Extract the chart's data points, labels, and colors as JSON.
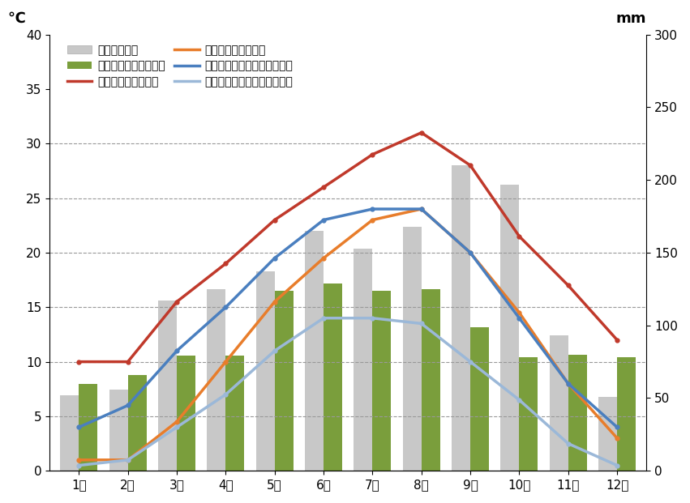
{
  "months": [
    "1月",
    "2月",
    "3月",
    "4月",
    "5月",
    "6月",
    "7月",
    "8月",
    "9月",
    "10月",
    "11月",
    "12月"
  ],
  "tokyo_precip": [
    52,
    56,
    117,
    125,
    137,
    165,
    153,
    168,
    210,
    197,
    93,
    51
  ],
  "zurich_precip": [
    60,
    66,
    79,
    79,
    124,
    129,
    124,
    125,
    99,
    78,
    80,
    78
  ],
  "tokyo_max_temp": [
    10,
    10,
    15.5,
    19,
    23,
    26,
    29,
    31,
    28,
    21.5,
    17,
    12
  ],
  "tokyo_min_temp": [
    1,
    1,
    4.5,
    10,
    15.5,
    19.5,
    23,
    24,
    20,
    14.5,
    8,
    3
  ],
  "zurich_max_temp": [
    4,
    6,
    11,
    15,
    19.5,
    23,
    24,
    24,
    20,
    14,
    8,
    4
  ],
  "zurich_min_temp": [
    0.5,
    1,
    4,
    7,
    11,
    14,
    14,
    13.5,
    10,
    6.5,
    2.5,
    0.5
  ],
  "tokyo_precip_color": "#c8c8c8",
  "zurich_precip_color": "#7a9e3c",
  "tokyo_max_color": "#c0392b",
  "tokyo_min_color": "#e87d2b",
  "zurich_max_color": "#4a7fbf",
  "zurich_min_color": "#9bb8d8",
  "left_ylabel": "℃",
  "right_ylabel": "mm",
  "ylim_left": [
    0,
    40
  ],
  "ylim_right": [
    0,
    300
  ],
  "yticks_left": [
    0,
    5,
    10,
    15,
    20,
    25,
    30,
    35,
    40
  ],
  "yticks_right": [
    0,
    50,
    100,
    150,
    200,
    250,
    300
  ],
  "bg_color": "#ffffff",
  "legend_labels": [
    "東京の降水量",
    "チューリッヒの降水量",
    "東京の平均最高気温",
    "東京の平均最低気温",
    "チューリッヒの平均最高気温",
    "チューリッヒの平均最低気温"
  ]
}
